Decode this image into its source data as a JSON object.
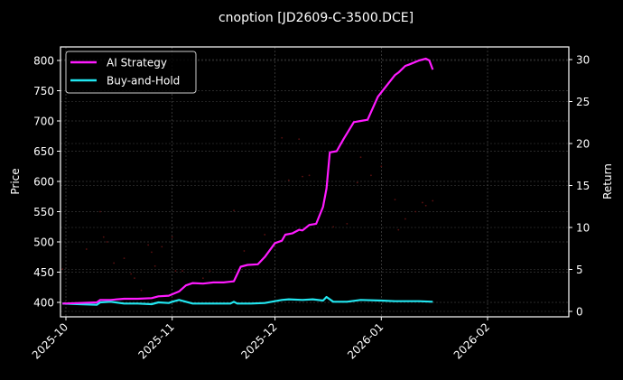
{
  "chart_data": {
    "type": "line",
    "title": "cnoption [JD2609-C-3500.DCE]",
    "xlabel": "",
    "ylabel": "Price",
    "ylabel_right": "Return",
    "ylim": [
      383,
      822
    ],
    "ylim_right": [
      -0.8,
      31.5
    ],
    "x_ticks": [
      "2025-10",
      "2025-11",
      "2025-12",
      "2026-01",
      "2026-02"
    ],
    "y_ticks": [
      400,
      450,
      500,
      550,
      600,
      650,
      700,
      750,
      800
    ],
    "y_ticks_right": [
      0,
      5,
      10,
      15,
      20,
      25,
      30
    ],
    "grid": true,
    "legend_position": "upper left",
    "background": "#000000",
    "series": [
      {
        "name": "AI Strategy",
        "color": "#ff1aff",
        "axis": "left",
        "x": [
          "2025-09-30",
          "2025-10-05",
          "2025-10-10",
          "2025-10-11",
          "2025-10-14",
          "2025-10-18",
          "2025-10-22",
          "2025-10-26",
          "2025-10-28",
          "2025-10-31",
          "2025-11-03",
          "2025-11-05",
          "2025-11-07",
          "2025-11-10",
          "2025-11-13",
          "2025-11-16",
          "2025-11-19",
          "2025-11-21",
          "2025-11-23",
          "2025-11-26",
          "2025-11-28",
          "2025-12-01",
          "2025-12-03",
          "2025-12-04",
          "2025-12-06",
          "2025-12-08",
          "2025-12-09",
          "2025-12-11",
          "2025-12-13",
          "2025-12-15",
          "2025-12-16",
          "2025-12-17",
          "2025-12-19",
          "2025-12-21",
          "2025-12-24",
          "2025-12-26",
          "2025-12-28",
          "2025-12-31",
          "2026-01-05",
          "2026-01-06",
          "2026-01-08",
          "2026-01-09",
          "2026-01-12",
          "2026-01-14",
          "2026-01-15",
          "2026-01-16"
        ],
        "values": [
          398,
          399,
          400,
          404,
          404,
          406,
          406,
          407,
          410,
          411,
          418,
          428,
          432,
          431,
          433,
          433,
          435,
          459,
          462,
          463,
          475,
          498,
          502,
          512,
          514,
          520,
          519,
          528,
          530,
          558,
          588,
          648,
          650,
          670,
          698,
          700,
          702,
          740,
          776,
          780,
          791,
          793,
          800,
          803,
          800,
          785
        ]
      },
      {
        "name": "Buy-and-Hold",
        "color": "#22e6f0",
        "axis": "left",
        "x": [
          "2025-09-30",
          "2025-10-05",
          "2025-10-10",
          "2025-10-11",
          "2025-10-14",
          "2025-10-18",
          "2025-10-22",
          "2025-10-26",
          "2025-10-28",
          "2025-10-31",
          "2025-11-01",
          "2025-11-03",
          "2025-11-07",
          "2025-11-12",
          "2025-11-18",
          "2025-11-19",
          "2025-11-20",
          "2025-11-24",
          "2025-11-28",
          "2025-12-03",
          "2025-12-05",
          "2025-12-09",
          "2025-12-12",
          "2025-12-15",
          "2025-12-16",
          "2025-12-18",
          "2025-12-22",
          "2025-12-26",
          "2026-01-01",
          "2026-01-05",
          "2026-01-09",
          "2026-01-12",
          "2026-01-16"
        ],
        "values": [
          398,
          397,
          396,
          400,
          401,
          398,
          398,
          397,
          400,
          399,
          401,
          404,
          398,
          398,
          398,
          401,
          398,
          398,
          399,
          404,
          405,
          404,
          405,
          403,
          409,
          401,
          401,
          404,
          403,
          402,
          402,
          402,
          401
        ]
      }
    ],
    "scatter_points_note": "faint dark-red price markers scattered across the plot",
    "price_markers": [
      {
        "x": "2025-10-07",
        "y": 488
      },
      {
        "x": "2025-10-11",
        "y": 550
      },
      {
        "x": "2025-10-12",
        "y": 508
      },
      {
        "x": "2025-10-13",
        "y": 500
      },
      {
        "x": "2025-10-15",
        "y": 465
      },
      {
        "x": "2025-10-18",
        "y": 473
      },
      {
        "x": "2025-10-20",
        "y": 447
      },
      {
        "x": "2025-10-21",
        "y": 440
      },
      {
        "x": "2025-10-23",
        "y": 420
      },
      {
        "x": "2025-10-25",
        "y": 495
      },
      {
        "x": "2025-10-26",
        "y": 483
      },
      {
        "x": "2025-10-27",
        "y": 460
      },
      {
        "x": "2025-10-29",
        "y": 492
      },
      {
        "x": "2025-11-01",
        "y": 508
      },
      {
        "x": "2025-11-02",
        "y": 452
      },
      {
        "x": "2025-11-04",
        "y": 452
      },
      {
        "x": "2025-11-10",
        "y": 440
      },
      {
        "x": "2025-11-12",
        "y": 452
      },
      {
        "x": "2025-11-19",
        "y": 552
      },
      {
        "x": "2025-11-22",
        "y": 485
      },
      {
        "x": "2025-11-28",
        "y": 512
      },
      {
        "x": "2025-12-03",
        "y": 672
      },
      {
        "x": "2025-12-05",
        "y": 602
      },
      {
        "x": "2025-12-08",
        "y": 670
      },
      {
        "x": "2025-12-09",
        "y": 608
      },
      {
        "x": "2025-12-11",
        "y": 610
      },
      {
        "x": "2025-12-18",
        "y": 525
      },
      {
        "x": "2025-12-22",
        "y": 530
      },
      {
        "x": "2025-12-25",
        "y": 598
      },
      {
        "x": "2025-12-26",
        "y": 640
      },
      {
        "x": "2025-12-29",
        "y": 610
      },
      {
        "x": "2026-01-01",
        "y": 625
      },
      {
        "x": "2026-01-05",
        "y": 570
      },
      {
        "x": "2026-01-06",
        "y": 520
      },
      {
        "x": "2026-01-08",
        "y": 538
      },
      {
        "x": "2026-01-11",
        "y": 550
      },
      {
        "x": "2026-01-13",
        "y": 565
      },
      {
        "x": "2026-01-14",
        "y": 560
      },
      {
        "x": "2026-01-16",
        "y": 568
      },
      {
        "x": "2025-09-30",
        "y": 455
      }
    ]
  }
}
